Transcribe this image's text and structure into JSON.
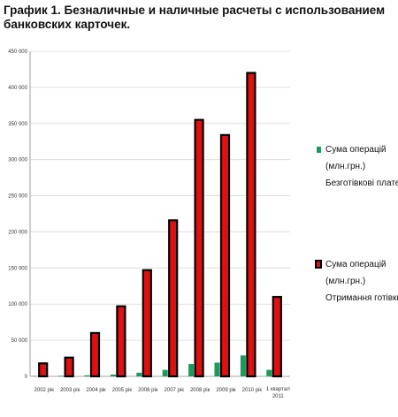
{
  "title": "График 1. Безналичные и наличные расчеты с использованием банковских карточек.",
  "chart_data": {
    "type": "bar",
    "categories": [
      "2002 рік",
      "2003 рік",
      "2004 рік",
      "2005 рік",
      "2006 рік",
      "2007 рік",
      "2008 рік",
      "2009 рік",
      "2010 рік",
      "1 квартал 2011"
    ],
    "series": [
      {
        "name_lines": [
          "Сума операцій",
          "(млн.грн.)",
          "Безготівкові платежі"
        ],
        "color": "#1a9b5a",
        "values": [
          500,
          800,
          1500,
          2500,
          5000,
          9000,
          17000,
          19000,
          29000,
          9000
        ]
      },
      {
        "name_lines": [
          "Сума операцій",
          "(млн.грн.)",
          "Отримання готівки"
        ],
        "color": "#e01010",
        "values": [
          18000,
          26000,
          60000,
          97000,
          147000,
          216000,
          355000,
          334000,
          420000,
          110000
        ]
      }
    ],
    "ylim": [
      0,
      450000
    ],
    "yticks": [
      "0",
      "50 000",
      "100 000",
      "150 000",
      "200 000",
      "250 000",
      "300 000",
      "350 000",
      "400 000",
      "450 000"
    ],
    "grid": true,
    "legend": "right"
  }
}
